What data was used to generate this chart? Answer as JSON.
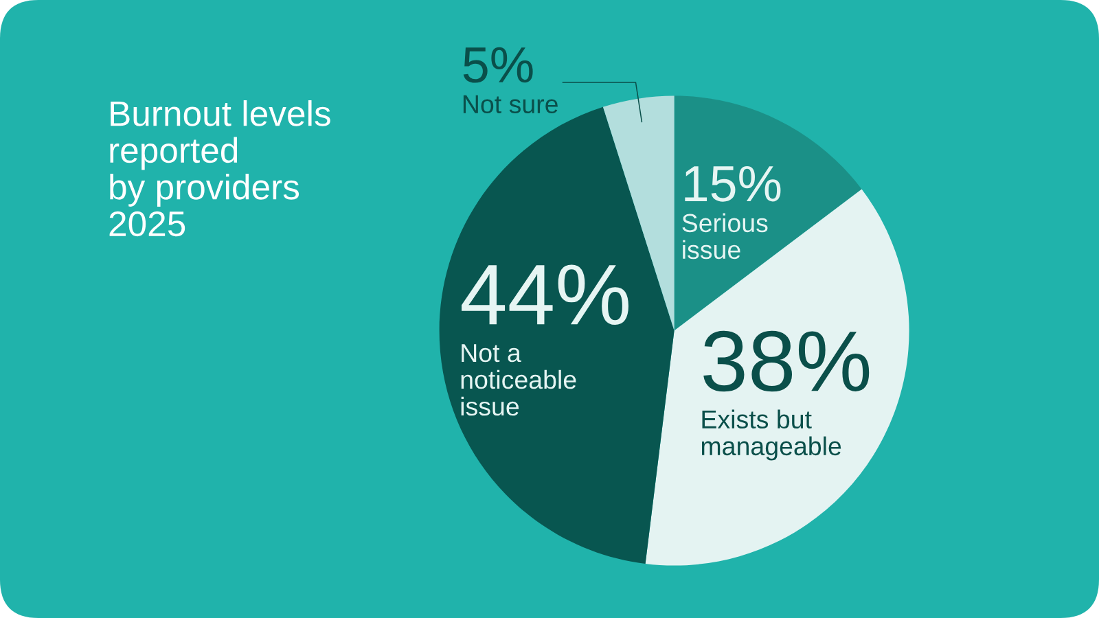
{
  "chart_data": {
    "type": "pie",
    "title": "Burnout levels\nreported\nby providers\n2025",
    "categories": [
      "Serious\nissue",
      "Exists but\nmanageable",
      "Not a\nnoticeable\nissue",
      "Not sure"
    ],
    "values": [
      15,
      38,
      44,
      5
    ],
    "colors": [
      "#1b9087",
      "#e4f3f2",
      "#085650",
      "#b3dedd"
    ],
    "value_labels": [
      "15%",
      "38%",
      "44%",
      "5%"
    ]
  }
}
